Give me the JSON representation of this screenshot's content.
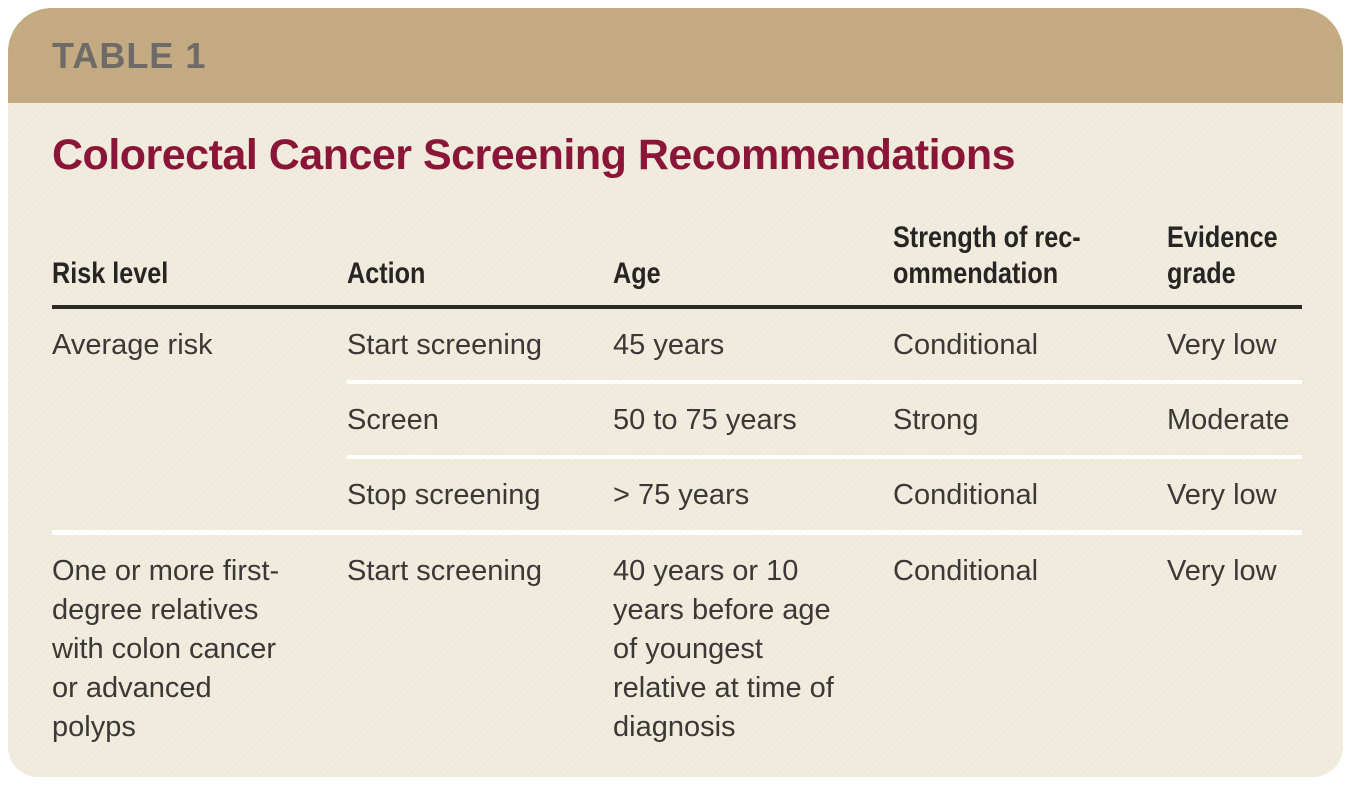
{
  "colors": {
    "page_bg": "#ffffff",
    "band": "#c5ab81",
    "card_bg": "#f2ecdf",
    "table_label": "#6f6b68",
    "title": "#8b1538",
    "header_text": "#272523",
    "body_text": "#3b3936",
    "rule_dark": "#2c2a27",
    "separator": "#ffffff"
  },
  "header_band": {
    "label": "TABLE 1"
  },
  "title": "Colorectal Cancer Screening Recommendations",
  "table": {
    "columns": [
      {
        "lines": [
          "Risk level"
        ]
      },
      {
        "lines": [
          "Action"
        ]
      },
      {
        "lines": [
          "Age"
        ]
      },
      {
        "lines": [
          "Strength of rec-",
          "ommendation"
        ]
      },
      {
        "lines": [
          "Evidence",
          "grade"
        ]
      }
    ],
    "rows": [
      {
        "risk_level": "Average risk",
        "action": "Start screening",
        "age": "45 years",
        "strength": "Conditional",
        "evidence": "Very low"
      },
      {
        "risk_level": "",
        "action": "Screen",
        "age": "50 to 75 years",
        "strength": "Strong",
        "evidence": "Moderate"
      },
      {
        "risk_level": "",
        "action": "Stop screening",
        "age": "> 75 years",
        "strength": "Conditional",
        "evidence": "Very low"
      },
      {
        "risk_level": "One or more first-degree relatives with colon cancer or advanced polyps",
        "action": "Start screening",
        "age": "40 years or 10 years before age of youngest relative at time of diagnosis",
        "strength": "Conditional",
        "evidence": "Very low"
      }
    ]
  }
}
